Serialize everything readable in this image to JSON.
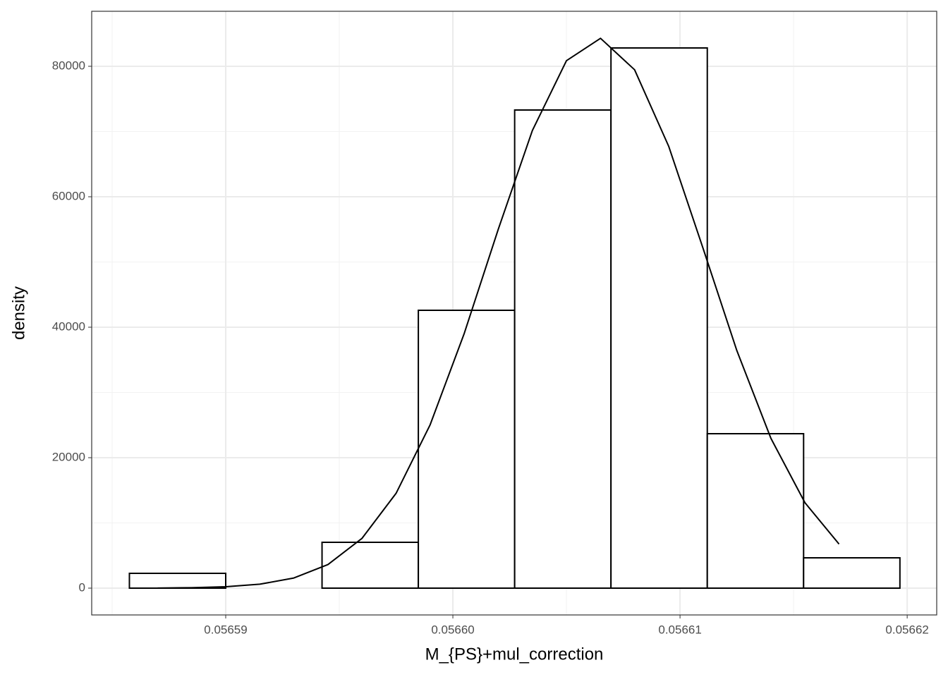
{
  "chart_data": {
    "type": "histogram",
    "xlabel": "M_{PS}+mul_correction",
    "ylabel": "density",
    "bins": [
      0.05658576,
      0.05659,
      0.05659424,
      0.05659848,
      0.05660272,
      0.05660696,
      0.0566112,
      0.05661544,
      0.05661968
    ],
    "values": [
      2270,
      0,
      7027,
      42595,
      73297,
      82811,
      23676,
      4649
    ],
    "color": "#ffffff",
    "edge_color": "#000000",
    "curve": {
      "color": "#000000",
      "x": [
        0.056587,
        0.0565885,
        0.05659,
        0.0565915,
        0.056593,
        0.0565945,
        0.056596,
        0.0565975,
        0.056599,
        0.0566005,
        0.056602,
        0.0566035,
        0.056605,
        0.0566065,
        0.056608,
        0.0566095,
        0.056611,
        0.0566125,
        0.056614,
        0.0566155,
        0.056617
      ],
      "values": [
        19.3,
        67.4,
        211.8,
        603.8,
        1556,
        3620,
        7633,
        14538,
        25053,
        39042,
        55038,
        70150,
        80857,
        84292,
        79467,
        67746,
        52239,
        36428,
        22970,
        13096,
        6755
      ]
    },
    "xlim": [
      0.0565841,
      0.0566213
    ],
    "xticks": [
      0.05659,
      {
        "value": 0.0566,
        "label": "0.05660"
      },
      0.05661,
      0.05662
    ],
    "ylim": [
      -4108,
      88432
    ],
    "yticks": [
      0,
      20000,
      40000,
      60000,
      80000
    ],
    "grid": true
  }
}
